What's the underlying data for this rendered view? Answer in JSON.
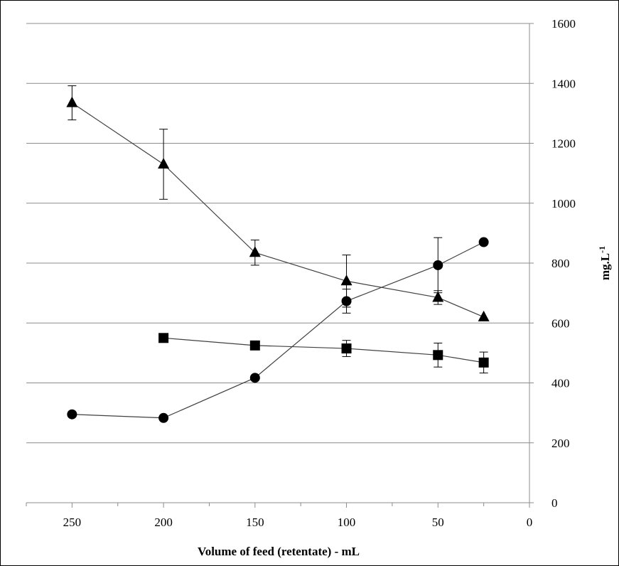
{
  "chart_data": {
    "type": "line",
    "xlabel": "Volume of feed (retentate) - mL",
    "ylabel": "mg.L",
    "ylabel_sup": "-1",
    "xlim": [
      275,
      0
    ],
    "ylim": [
      0,
      1600
    ],
    "x_reversed": true,
    "x_ticks": [
      250,
      200,
      150,
      100,
      50,
      0
    ],
    "y_ticks": [
      0,
      200,
      400,
      600,
      800,
      1000,
      1200,
      1400,
      1600
    ],
    "y_axis_position": "right",
    "grid": "horizontal",
    "series": [
      {
        "marker": "triangle",
        "x": [
          250,
          200,
          150,
          100,
          50,
          25
        ],
        "values": [
          1335,
          1130,
          835,
          740,
          685,
          620
        ],
        "err": [
          57,
          117,
          42,
          87,
          23,
          0
        ]
      },
      {
        "marker": "circle",
        "x": [
          250,
          200,
          150,
          100,
          50,
          25
        ],
        "values": [
          295,
          283,
          417,
          673,
          793,
          870
        ],
        "err": [
          0,
          0,
          0,
          40,
          92,
          0
        ]
      },
      {
        "marker": "square",
        "x": [
          200,
          150,
          100,
          50,
          25
        ],
        "values": [
          550,
          525,
          515,
          493,
          468
        ],
        "err": [
          0,
          0,
          27,
          40,
          35
        ]
      }
    ]
  }
}
